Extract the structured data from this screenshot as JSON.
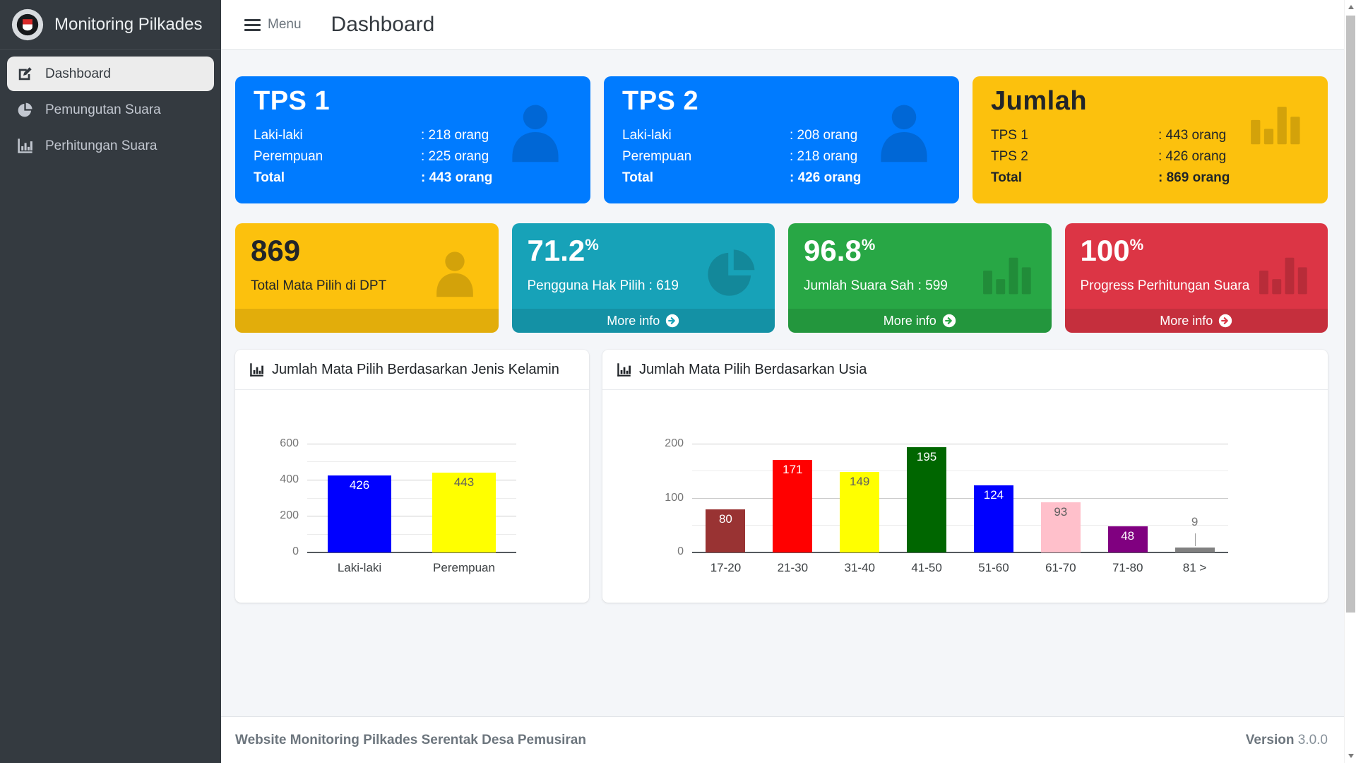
{
  "brand": {
    "title": "Monitoring Pilkades"
  },
  "header": {
    "menu_label": "Menu",
    "page_title": "Dashboard"
  },
  "sidebar": {
    "items": [
      {
        "label": "Dashboard",
        "icon": "edit-icon",
        "active": true
      },
      {
        "label": "Pemungutan Suara",
        "icon": "pie-chart-icon",
        "active": false
      },
      {
        "label": "Perhitungan Suara",
        "icon": "chart-axis-icon",
        "active": false
      }
    ]
  },
  "tps_cards": [
    {
      "title": "TPS 1",
      "color": "#007bff",
      "text_color": "#ffffff",
      "icon": "person-icon",
      "rows": [
        {
          "label": "Laki-laki",
          "value": ": 218 orang",
          "bold": false
        },
        {
          "label": "Perempuan",
          "value": ": 225 orang",
          "bold": false
        },
        {
          "label": "Total",
          "value": ": 443 orang",
          "bold": true
        }
      ]
    },
    {
      "title": "TPS 2",
      "color": "#007bff",
      "text_color": "#ffffff",
      "icon": "person-icon",
      "rows": [
        {
          "label": "Laki-laki",
          "value": ": 208 orang",
          "bold": false
        },
        {
          "label": "Perempuan",
          "value": ": 218 orang",
          "bold": false
        },
        {
          "label": "Total",
          "value": ": 426 orang",
          "bold": true
        }
      ]
    },
    {
      "title": "Jumlah",
      "color": "#fcc10d",
      "text_color": "#212529",
      "icon": "bar-chart-icon",
      "rows": [
        {
          "label": "TPS 1",
          "value": ": 443 orang",
          "bold": false
        },
        {
          "label": "TPS 2",
          "value": ": 426 orang",
          "bold": false
        },
        {
          "label": "Total",
          "value": ": 869 orang",
          "bold": true
        }
      ]
    }
  ],
  "stat_boxes": [
    {
      "value": "869",
      "suffix": "",
      "label": "Total Mata Pilih di DPT",
      "icon": "person-icon",
      "color": "#fcc10d",
      "text_color": "#212529",
      "footer_label": "",
      "has_footer_link": false
    },
    {
      "value": "71.2",
      "suffix": "%",
      "label": "Pengguna Hak Pilih : 619",
      "icon": "pie-chart-icon",
      "color": "#17a2b8",
      "text_color": "#ffffff",
      "footer_label": "More info",
      "has_footer_link": true
    },
    {
      "value": "96.8",
      "suffix": "%",
      "label": "Jumlah Suara Sah : 599",
      "icon": "bar-chart-icon",
      "color": "#28a745",
      "text_color": "#ffffff",
      "footer_label": "More info",
      "has_footer_link": true
    },
    {
      "value": "100",
      "suffix": "%",
      "label": "Progress Perhitungan Suara",
      "icon": "bar-chart-icon",
      "color": "#dc3545",
      "text_color": "#ffffff",
      "footer_label": "More info",
      "has_footer_link": true
    }
  ],
  "chart_data": [
    {
      "type": "bar",
      "title": "Jumlah Mata Pilih Berdasarkan Jenis Kelamin",
      "categories": [
        "Laki-laki",
        "Perempuan"
      ],
      "values": [
        426,
        443
      ],
      "bar_colors": [
        "#0000ff",
        "#ffff00"
      ],
      "label_colors": [
        "#ffffff",
        "#5f5f5f"
      ],
      "ylim": [
        0,
        600
      ],
      "ytick_major": 200,
      "ytick_minor": 100,
      "grid": true,
      "legend": "none",
      "xlabel": "",
      "ylabel": ""
    },
    {
      "type": "bar",
      "title": "Jumlah Mata Pilih Berdasarkan Usia",
      "categories": [
        "17-20",
        "21-30",
        "31-40",
        "41-50",
        "51-60",
        "61-70",
        "71-80",
        "81 >"
      ],
      "values": [
        80,
        171,
        149,
        195,
        124,
        93,
        48,
        9
      ],
      "bar_colors": [
        "#993333",
        "#ff0000",
        "#ffff00",
        "#006600",
        "#0000ff",
        "#ffc0cb",
        "#800080",
        "#808080"
      ],
      "label_colors": [
        "#ffffff",
        "#ffffff",
        "#5f5f5f",
        "#ffffff",
        "#ffffff",
        "#5f5f5f",
        "#ffffff",
        "#757575"
      ],
      "ylim": [
        0,
        200
      ],
      "ytick_major": 100,
      "ytick_minor": 50,
      "grid": true,
      "legend": "none",
      "xlabel": "",
      "ylabel": ""
    }
  ],
  "footer": {
    "left": "Website Monitoring Pilkades Serentak Desa Pemusiran",
    "version_label": "Version",
    "version_value": "3.0.0"
  }
}
